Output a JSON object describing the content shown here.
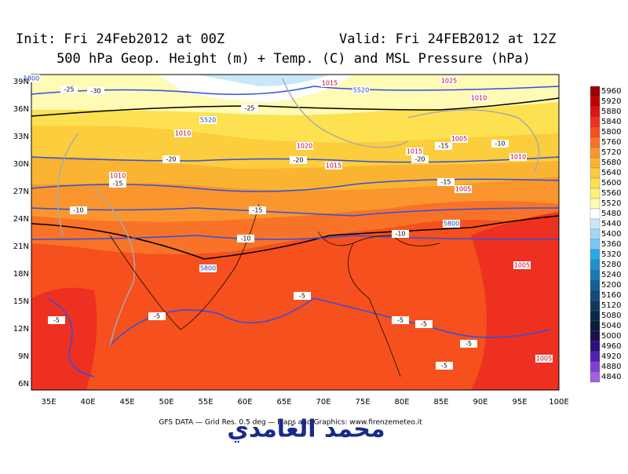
{
  "header": {
    "init": "Init: Fri 24Feb2012 at 00Z",
    "valid": "Valid: Fri 24FEB2012 at 12Z",
    "title": "500 hPa Geop. Height (m) + Temp. (C) and MSL Pressure (hPa)"
  },
  "lat_labels": [
    "39N",
    "36N",
    "33N",
    "30N",
    "27N",
    "24N",
    "21N",
    "18N",
    "15N",
    "12N",
    "9N",
    "6N"
  ],
  "lon_labels": [
    "35E",
    "40E",
    "45E",
    "50E",
    "55E",
    "60E",
    "65E",
    "70E",
    "75E",
    "80E",
    "85E",
    "90E",
    "95E",
    "100E"
  ],
  "colorbar": {
    "levels": [
      5960,
      5920,
      5880,
      5840,
      5800,
      5760,
      5720,
      5680,
      5640,
      5600,
      5560,
      5520,
      5480,
      5440,
      5400,
      5360,
      5320,
      5280,
      5240,
      5200,
      5160,
      5120,
      5080,
      5040,
      5000,
      4960,
      4920,
      4880,
      4840
    ],
    "colors": [
      "#9b0000",
      "#c00000",
      "#dc1414",
      "#ee3020",
      "#f5501e",
      "#f87328",
      "#fa962d",
      "#fbb432",
      "#fccd3c",
      "#fde150",
      "#fff078",
      "#fffab4",
      "#ffffff",
      "#c8e8fa",
      "#a0d8f8",
      "#78c8f0",
      "#28a8e8",
      "#1e90d0",
      "#1a78b4",
      "#165e96",
      "#124a78",
      "#0e3a60",
      "#0a2a48",
      "#081e38",
      "#1a1050",
      "#2a1080",
      "#5020b0",
      "#8040d0",
      "#a060e0"
    ]
  },
  "contour_labels": [
    "-25",
    "-30",
    "-25",
    "-20",
    "-15",
    "-15",
    "-10",
    "-10",
    "-10",
    "-15",
    "-20",
    "-20",
    "-15",
    "-10",
    "-5",
    "-5",
    "-5",
    "-5",
    "-5",
    "-5",
    "-5",
    "5520",
    "5520",
    "5800",
    "5800",
    "5800",
    "1015",
    "1010",
    "1010",
    "1020",
    "1015",
    "1005",
    "1010",
    "1025",
    "1015",
    "1005",
    "1010",
    "1005",
    "1005"
  ],
  "footer": "GFS DATA — Grid Res. 0.5 deg — Maps and Graphics: www.firenzemeteo.it",
  "watermark": "محمد الغامدي"
}
